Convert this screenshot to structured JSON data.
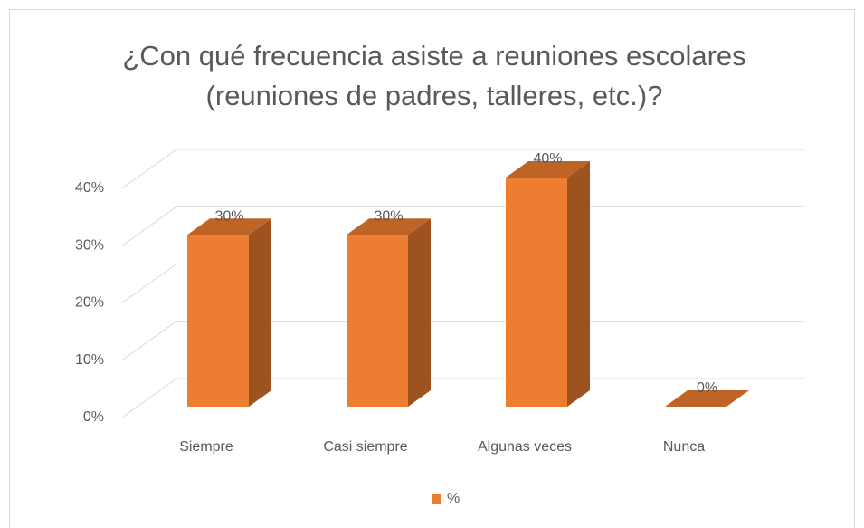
{
  "chart_data": {
    "type": "bar3d",
    "title": "¿Con qué frecuencia asiste a reuniones escolares (reuniones de padres, talleres, etc.)?",
    "categories": [
      "Siempre",
      "Casi siempre",
      "Algunas veces",
      "Nunca"
    ],
    "series": [
      {
        "name": "%",
        "color": "#ed7d31",
        "values": [
          30,
          30,
          40,
          0
        ],
        "value_labels": [
          "30%",
          "30%",
          "40%",
          "0%"
        ]
      }
    ],
    "ylim": [
      0,
      40
    ],
    "yticks": [
      {
        "value": 0,
        "label": "0%"
      },
      {
        "value": 10,
        "label": "10%"
      },
      {
        "value": 20,
        "label": "20%"
      },
      {
        "value": 30,
        "label": "30%"
      },
      {
        "value": 40,
        "label": "40%"
      }
    ],
    "grid": true,
    "legend": "bottom"
  }
}
